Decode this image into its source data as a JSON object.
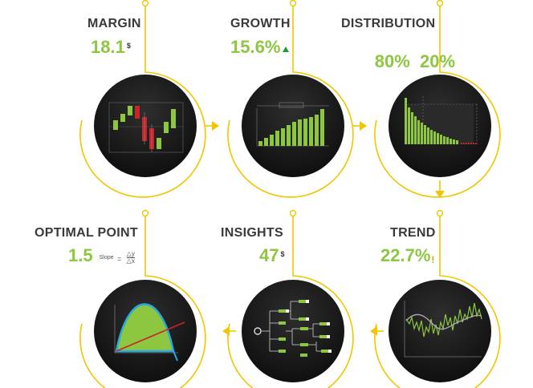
{
  "steps": [
    {
      "title": "MARGIN",
      "value": "18.1",
      "unit": "$"
    },
    {
      "title": "GROWTH",
      "value": "15.6%",
      "indicator": "up-triangle-icon"
    },
    {
      "title": "DISTRIBUTION",
      "value": "80%  20%"
    },
    {
      "title": "TREND",
      "value": "22.7%",
      "indicator": "exclamation-icon"
    },
    {
      "title": "INSIGHTS",
      "value": "47",
      "unit": "$"
    },
    {
      "title": "OPTIMAL POINT",
      "value": "1.5",
      "slope_label": "Slope",
      "slope_eq": "=",
      "slope_num": "△y",
      "slope_den": "△x"
    }
  ],
  "colors": {
    "accent_green": "#8dc63f",
    "connector_yellow": "#f2c500",
    "circle_dark": "#1a1a1a",
    "title_gray": "#3a3a3a",
    "bar_red": "#c8242b",
    "curve_blue": "#29a9e1"
  },
  "icons": [
    "candlestick-icon",
    "bar-growth-icon",
    "pareto-icon",
    "trend-line-icon",
    "decision-tree-icon",
    "optimal-curve-icon",
    "arrow-right-icon",
    "arrow-down-icon",
    "arrow-left-icon"
  ]
}
